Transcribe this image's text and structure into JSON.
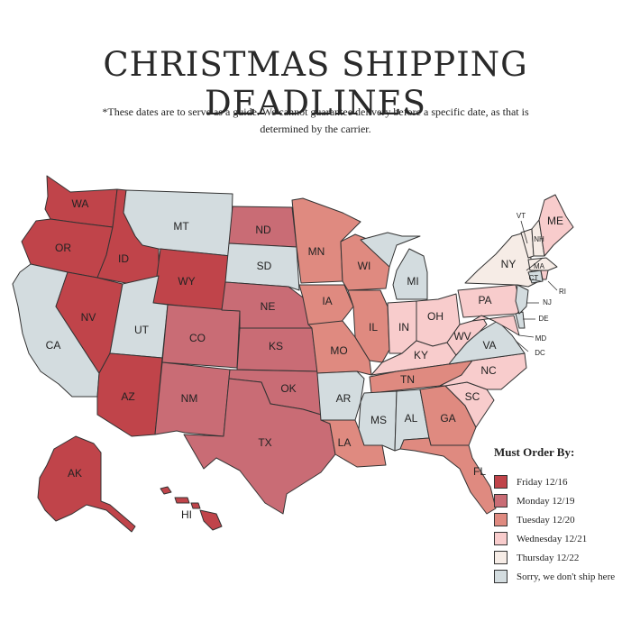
{
  "title": "CHRISTMAS SHIPPING DEADLINES",
  "subtitle": "*These dates are to serve as a guide. We cannot guarantee delivery before a specific date, as that is determined by the carrier.",
  "legend": {
    "title": "Must Order By:",
    "items": [
      {
        "key": "fri",
        "label": "Friday 12/16",
        "color": "#c0444a"
      },
      {
        "key": "mon",
        "label": "Monday 12/19",
        "color": "#c96c75"
      },
      {
        "key": "tue",
        "label": "Tuesday 12/20",
        "color": "#df8a80"
      },
      {
        "key": "wed",
        "label": "Wednesday 12/21",
        "color": "#f8cccc"
      },
      {
        "key": "thu",
        "label": "Thursday 12/22",
        "color": "#f6ece6"
      },
      {
        "key": "none",
        "label": "Sorry, we don't ship here",
        "color": "#d3dcdf"
      }
    ]
  },
  "states": [
    {
      "abbr": "WA",
      "group": "fri"
    },
    {
      "abbr": "OR",
      "group": "fri"
    },
    {
      "abbr": "ID",
      "group": "fri"
    },
    {
      "abbr": "NV",
      "group": "fri"
    },
    {
      "abbr": "WY",
      "group": "fri"
    },
    {
      "abbr": "AZ",
      "group": "fri"
    },
    {
      "abbr": "AK",
      "group": "fri"
    },
    {
      "abbr": "HI",
      "group": "fri"
    },
    {
      "abbr": "CA",
      "group": "none"
    },
    {
      "abbr": "MT",
      "group": "none"
    },
    {
      "abbr": "UT",
      "group": "none"
    },
    {
      "abbr": "SD",
      "group": "none"
    },
    {
      "abbr": "AR",
      "group": "none"
    },
    {
      "abbr": "MS",
      "group": "none"
    },
    {
      "abbr": "AL",
      "group": "none"
    },
    {
      "abbr": "MI",
      "group": "none"
    },
    {
      "abbr": "VA",
      "group": "none"
    },
    {
      "abbr": "NJ",
      "group": "none"
    },
    {
      "abbr": "DE",
      "group": "none"
    },
    {
      "abbr": "CT",
      "group": "none"
    },
    {
      "abbr": "ND",
      "group": "mon"
    },
    {
      "abbr": "NE",
      "group": "mon"
    },
    {
      "abbr": "CO",
      "group": "mon"
    },
    {
      "abbr": "KS",
      "group": "mon"
    },
    {
      "abbr": "NM",
      "group": "mon"
    },
    {
      "abbr": "OK",
      "group": "mon"
    },
    {
      "abbr": "TX",
      "group": "mon"
    },
    {
      "abbr": "MN",
      "group": "tue"
    },
    {
      "abbr": "WI",
      "group": "tue"
    },
    {
      "abbr": "IA",
      "group": "tue"
    },
    {
      "abbr": "IL",
      "group": "tue"
    },
    {
      "abbr": "MO",
      "group": "tue"
    },
    {
      "abbr": "LA",
      "group": "tue"
    },
    {
      "abbr": "TN",
      "group": "tue"
    },
    {
      "abbr": "GA",
      "group": "tue"
    },
    {
      "abbr": "FL",
      "group": "tue"
    },
    {
      "abbr": "IN",
      "group": "wed"
    },
    {
      "abbr": "OH",
      "group": "wed"
    },
    {
      "abbr": "KY",
      "group": "wed"
    },
    {
      "abbr": "WV",
      "group": "wed"
    },
    {
      "abbr": "PA",
      "group": "wed"
    },
    {
      "abbr": "NC",
      "group": "wed"
    },
    {
      "abbr": "SC",
      "group": "wed"
    },
    {
      "abbr": "ME",
      "group": "wed"
    },
    {
      "abbr": "MD",
      "group": "wed"
    },
    {
      "abbr": "RI",
      "group": "wed"
    },
    {
      "abbr": "NY",
      "group": "thu"
    },
    {
      "abbr": "VT",
      "group": "thu"
    },
    {
      "abbr": "NH",
      "group": "thu"
    },
    {
      "abbr": "MA",
      "group": "thu"
    }
  ]
}
